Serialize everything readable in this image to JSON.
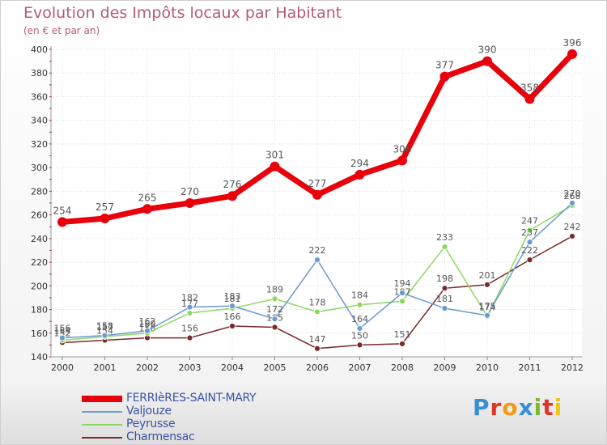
{
  "header": {
    "title": "Evolution des Impôts locaux par Habitant",
    "subtitle": "(en € et par an)"
  },
  "logo": {
    "text": "Proxiti",
    "colors": [
      "#3a8fd3",
      "#e0342b",
      "#f29a16",
      "#3a8fd3",
      "#7ab82c",
      "#e0342b",
      "#f2c214"
    ]
  },
  "chart_data": {
    "type": "line",
    "title": "Evolution des Impôts locaux par Habitant",
    "subtitle": "(en € et par an)",
    "xlabel": "",
    "ylabel": "",
    "x": [
      "2000",
      "2001",
      "2002",
      "2003",
      "2004",
      "2005",
      "2006",
      "2007",
      "2008",
      "2009",
      "2010",
      "2011",
      "2012"
    ],
    "ylim": [
      140,
      400
    ],
    "yticks": [
      "140",
      "160",
      "180",
      "200",
      "220",
      "240",
      "260",
      "280",
      "300",
      "320",
      "340",
      "360",
      "380",
      "400"
    ],
    "grid": true,
    "legend_position": "bottom-left",
    "series": [
      {
        "name": "FERRIèRES-SAINT-MARY",
        "color": "#e8000b",
        "values": [
          254,
          257,
          265,
          270,
          276,
          301,
          277,
          294,
          306,
          377,
          390,
          358,
          396
        ],
        "labels": [
          "254",
          "257",
          "265",
          "270",
          "276",
          "301",
          "277",
          "294",
          "306",
          "377",
          "390",
          "358",
          "396"
        ]
      },
      {
        "name": "Valjouze",
        "color": "#6b9bd0",
        "values": [
          156,
          158,
          162,
          182,
          183,
          172,
          222,
          164,
          194,
          181,
          175,
          237,
          270
        ],
        "labels": [
          "156",
          "158",
          "162",
          "182",
          "183",
          "172",
          "222",
          "164",
          "194",
          "181",
          "175",
          "237",
          "270"
        ]
      },
      {
        "name": "Peyrusse",
        "color": "#8ed862",
        "values": [
          154,
          157,
          160,
          177,
          181,
          189,
          178,
          184,
          187,
          233,
          174,
          247,
          268
        ],
        "labels": [
          "154",
          "157",
          "160",
          "177",
          "181",
          "189",
          "178",
          "184",
          "187",
          "233",
          "174",
          "247",
          "268"
        ]
      },
      {
        "name": "Charmensac",
        "color": "#7a2a2a",
        "values": [
          152,
          154,
          156,
          156,
          166,
          165,
          147,
          150,
          151,
          198,
          201,
          222,
          242
        ],
        "labels": [
          "152",
          "154",
          "156",
          "156",
          "166",
          "165",
          "147",
          "150",
          "151",
          "198",
          "201",
          "222",
          "242"
        ]
      }
    ]
  }
}
